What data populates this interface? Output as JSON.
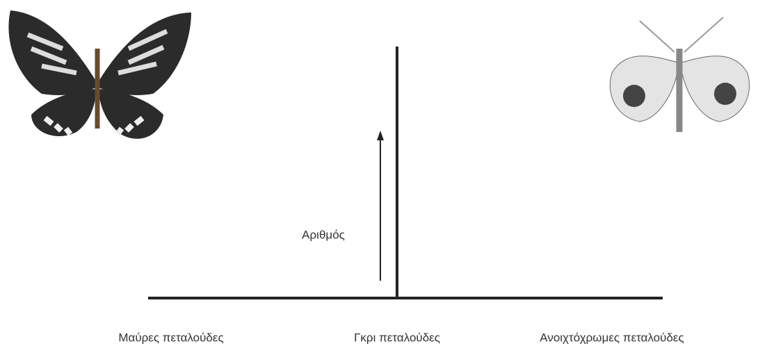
{
  "axis_label": "Αριθμός",
  "categories": [
    "Μαύρες πεταλούδες",
    "Γκρι πεταλούδες",
    "Ανοιχτόχρωμες πεταλούδες"
  ]
}
